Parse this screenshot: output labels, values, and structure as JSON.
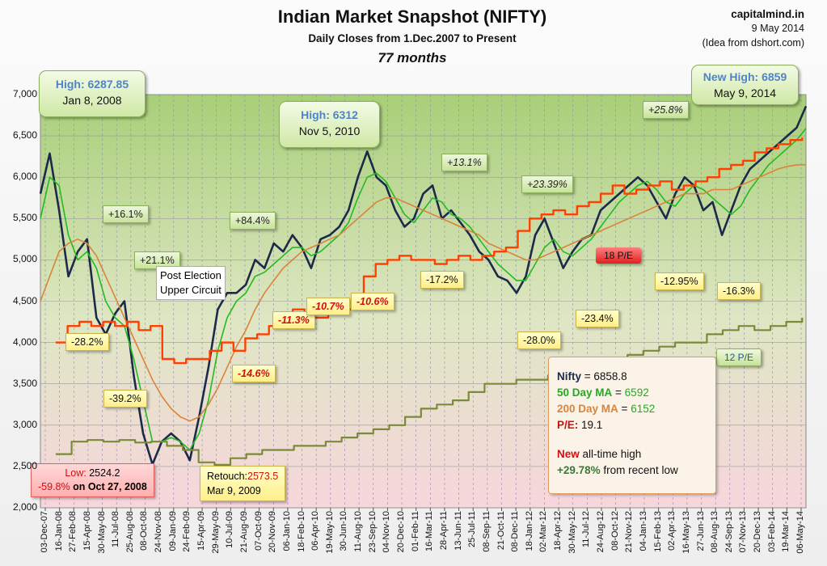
{
  "title": "Indian Market Snapshot (NIFTY)",
  "subtitle": "Daily Closes from 1.Dec.2007  to Present",
  "subtitle2": "77 months",
  "credit": {
    "site": "capitalmind.in",
    "date": "9 May 2014",
    "idea": "(Idea from dshort.com)"
  },
  "callouts": {
    "high2008": {
      "label": "High: 6287.85",
      "date": "Jan 8, 2008"
    },
    "high2010": {
      "label": "High: 6312",
      "date": "Nov 5, 2010"
    },
    "high2014": {
      "label": "New High: 6859",
      "date": "May 9, 2014"
    }
  },
  "annotations": {
    "g1": "+16.1%",
    "g2": "+21.1%",
    "g3": "+84.4%",
    "g4": "+13.1%",
    "g5": "+23.39%",
    "g6": "+25.8%",
    "d1": "-28.2%",
    "d2": "-39.2%",
    "d3": "-17.2%",
    "d4": "-28.0%",
    "d5": "-23.4%",
    "d6": "-12.95%",
    "d7": "-16.3%",
    "r1": "-11.3%",
    "r2": "-10.7%",
    "r3": "-10.6%",
    "r4": "-14.6%",
    "post_election_1": "Post Election",
    "post_election_2": "Upper Circuit",
    "pe18": "18 P/E",
    "pe12": "12 P/E"
  },
  "low_box": {
    "line1_label": "Low:",
    "line1_value": "2524.2",
    "line2_pct": "-59.8%",
    "line2_rest": "on Oct 27, 2008"
  },
  "retouch_box": {
    "label": "Retouch:",
    "value": "2573.5",
    "date": "Mar 9, 2009"
  },
  "stats": {
    "nifty_label": "Nifty",
    "nifty_value": "= 6858.8",
    "ma50_label": "50 Day MA",
    "ma50_eq": " = ",
    "ma50_value": "6592",
    "ma200_label": "200 Day MA",
    "ma200_eq": " = ",
    "ma200_value": "6152",
    "pe_label": "P/E:",
    "pe_value": "19.1",
    "new_word": "New",
    "new_rest": " all-time high",
    "gain_pct": "+29.78%",
    "gain_rest": " from recent low"
  },
  "colors": {
    "nifty": "#1c2a4a",
    "ma50": "#22bb22",
    "ma200": "#d9843a",
    "pe_line": "#ff4000",
    "pe12_line": "#7a8a3a"
  },
  "chart_data": {
    "type": "line",
    "ylim": [
      2000,
      7000
    ],
    "yticks": [
      "2,000",
      "2,500",
      "3,000",
      "3,500",
      "4,000",
      "4,500",
      "5,000",
      "5,500",
      "6,000",
      "6,500",
      "7,000"
    ],
    "x_tick_labels": [
      "03-Dec-07",
      "16-Jan-08",
      "27-Feb-08",
      "15-Apr-08",
      "30-May-08",
      "11-Jul-08",
      "25-Aug-08",
      "08-Oct-08",
      "24-Nov-08",
      "09-Jan-09",
      "24-Feb-09",
      "15-Apr-09",
      "29-May-09",
      "10-Jul-09",
      "21-Aug-09",
      "07-Oct-09",
      "20-Nov-09",
      "06-Jan-10",
      "18-Feb-10",
      "06-Apr-10",
      "19-May-10",
      "30-Jun-10",
      "11-Aug-10",
      "23-Sep-10",
      "04-Nov-10",
      "20-Dec-10",
      "01-Feb-11",
      "16-Mar-11",
      "28-Apr-11",
      "13-Jun-11",
      "25-Jul-11",
      "08-Sep-11",
      "21-Oct-11",
      "08-Dec-11",
      "18-Jan-12",
      "02-Mar-12",
      "18-Apr-12",
      "30-May-12",
      "11-Jul-12",
      "24-Aug-12",
      "08-Oct-12",
      "21-Nov-12",
      "04-Jan-13",
      "15-Feb-13",
      "02-Apr-13",
      "16-May-13",
      "27-Jun-13",
      "08-Aug-13",
      "24-Sep-13",
      "07-Nov-13",
      "20-Dec-13",
      "03-Feb-14",
      "19-Mar-14",
      "06-May-14"
    ],
    "series": [
      {
        "values": [
          5800,
          6288,
          5600,
          4800,
          5100,
          5250,
          4300,
          4100,
          4350,
          4500,
          3600,
          2900,
          2524,
          2800,
          2900,
          2800,
          2574,
          3100,
          3700,
          4400,
          4600,
          4600,
          4700,
          5000,
          4900,
          5200,
          5100,
          5300,
          5150,
          4900,
          5250,
          5300,
          5400,
          5600,
          6000,
          6312,
          6000,
          5900,
          5600,
          5400,
          5500,
          5800,
          5900,
          5500,
          5600,
          5450,
          5300,
          5100,
          5000,
          4800,
          4750,
          4600,
          4800,
          5300,
          5500,
          5200,
          4900,
          5100,
          5250,
          5300,
          5600,
          5700,
          5800,
          5900,
          6000,
          5900,
          5700,
          5500,
          5800,
          6000,
          5900,
          5600,
          5700,
          5300,
          5600,
          5900,
          6100,
          6200,
          6300,
          6400,
          6500,
          6600,
          6859
        ]
      },
      {
        "values": [
          5500,
          6000,
          5900,
          5300,
          5000,
          5100,
          4900,
          4500,
          4300,
          4200,
          3800,
          3300,
          2800,
          2800,
          2850,
          2800,
          2700,
          2900,
          3300,
          3900,
          4300,
          4500,
          4600,
          4800,
          4850,
          4950,
          5050,
          5150,
          5150,
          5050,
          5100,
          5200,
          5300,
          5450,
          5750,
          6000,
          6050,
          5950,
          5750,
          5550,
          5450,
          5600,
          5750,
          5700,
          5550,
          5500,
          5400,
          5250,
          5100,
          4950,
          4850,
          4750,
          4750,
          4950,
          5150,
          5250,
          5100,
          5050,
          5150,
          5250,
          5400,
          5550,
          5700,
          5800,
          5900,
          5950,
          5850,
          5700,
          5650,
          5800,
          5900,
          5850,
          5750,
          5650,
          5550,
          5650,
          5850,
          6000,
          6150,
          6250,
          6350,
          6450,
          6592
        ]
      },
      {
        "values": [
          4500,
          4800,
          5100,
          5200,
          5250,
          5200,
          5050,
          4800,
          4550,
          4300,
          4050,
          3800,
          3550,
          3350,
          3200,
          3100,
          3050,
          3100,
          3250,
          3450,
          3700,
          3950,
          4150,
          4400,
          4600,
          4750,
          4900,
          5000,
          5100,
          5150,
          5200,
          5250,
          5300,
          5400,
          5500,
          5600,
          5700,
          5750,
          5750,
          5700,
          5650,
          5600,
          5550,
          5500,
          5450,
          5400,
          5350,
          5300,
          5200,
          5150,
          5100,
          5050,
          5000,
          5000,
          5050,
          5100,
          5150,
          5200,
          5250,
          5300,
          5350,
          5400,
          5450,
          5500,
          5550,
          5600,
          5650,
          5700,
          5750,
          5800,
          5800,
          5800,
          5850,
          5850,
          5850,
          5900,
          5950,
          6000,
          6050,
          6100,
          6130,
          6150,
          6152
        ]
      },
      {
        "values": [
          4000,
          4200,
          4250,
          4200,
          4250,
          4200,
          4250,
          4150,
          4200,
          3800,
          3750,
          3800,
          3800,
          3900,
          4000,
          3900,
          4050,
          4100,
          4200,
          4300,
          4400,
          4300,
          4300,
          4350,
          4400,
          4450,
          4800,
          4950,
          5000,
          5050,
          5000,
          5000,
          4950,
          5000,
          5050,
          5000,
          5050,
          5100,
          5150,
          5350,
          5500,
          5550,
          5600,
          5550,
          5650,
          5700,
          5800,
          5900,
          5800,
          5850,
          5900,
          5950,
          5850,
          5900,
          5950,
          6000,
          6100,
          6150,
          6200,
          6300,
          6350,
          6400,
          6450,
          6480
        ]
      },
      {
        "values": [
          2650,
          2800,
          2820,
          2800,
          2820,
          2790,
          2800,
          2750,
          2700,
          2550,
          2520,
          2600,
          2650,
          2700,
          2700,
          2750,
          2750,
          2800,
          2850,
          2900,
          2950,
          3000,
          3100,
          3200,
          3250,
          3300,
          3400,
          3500,
          3500,
          3550,
          3550,
          3600,
          3650,
          3700,
          3750,
          3800,
          3850,
          3900,
          3950,
          4000,
          4000,
          4100,
          4150,
          4200,
          4150,
          4200,
          4250,
          4300
        ]
      }
    ]
  }
}
